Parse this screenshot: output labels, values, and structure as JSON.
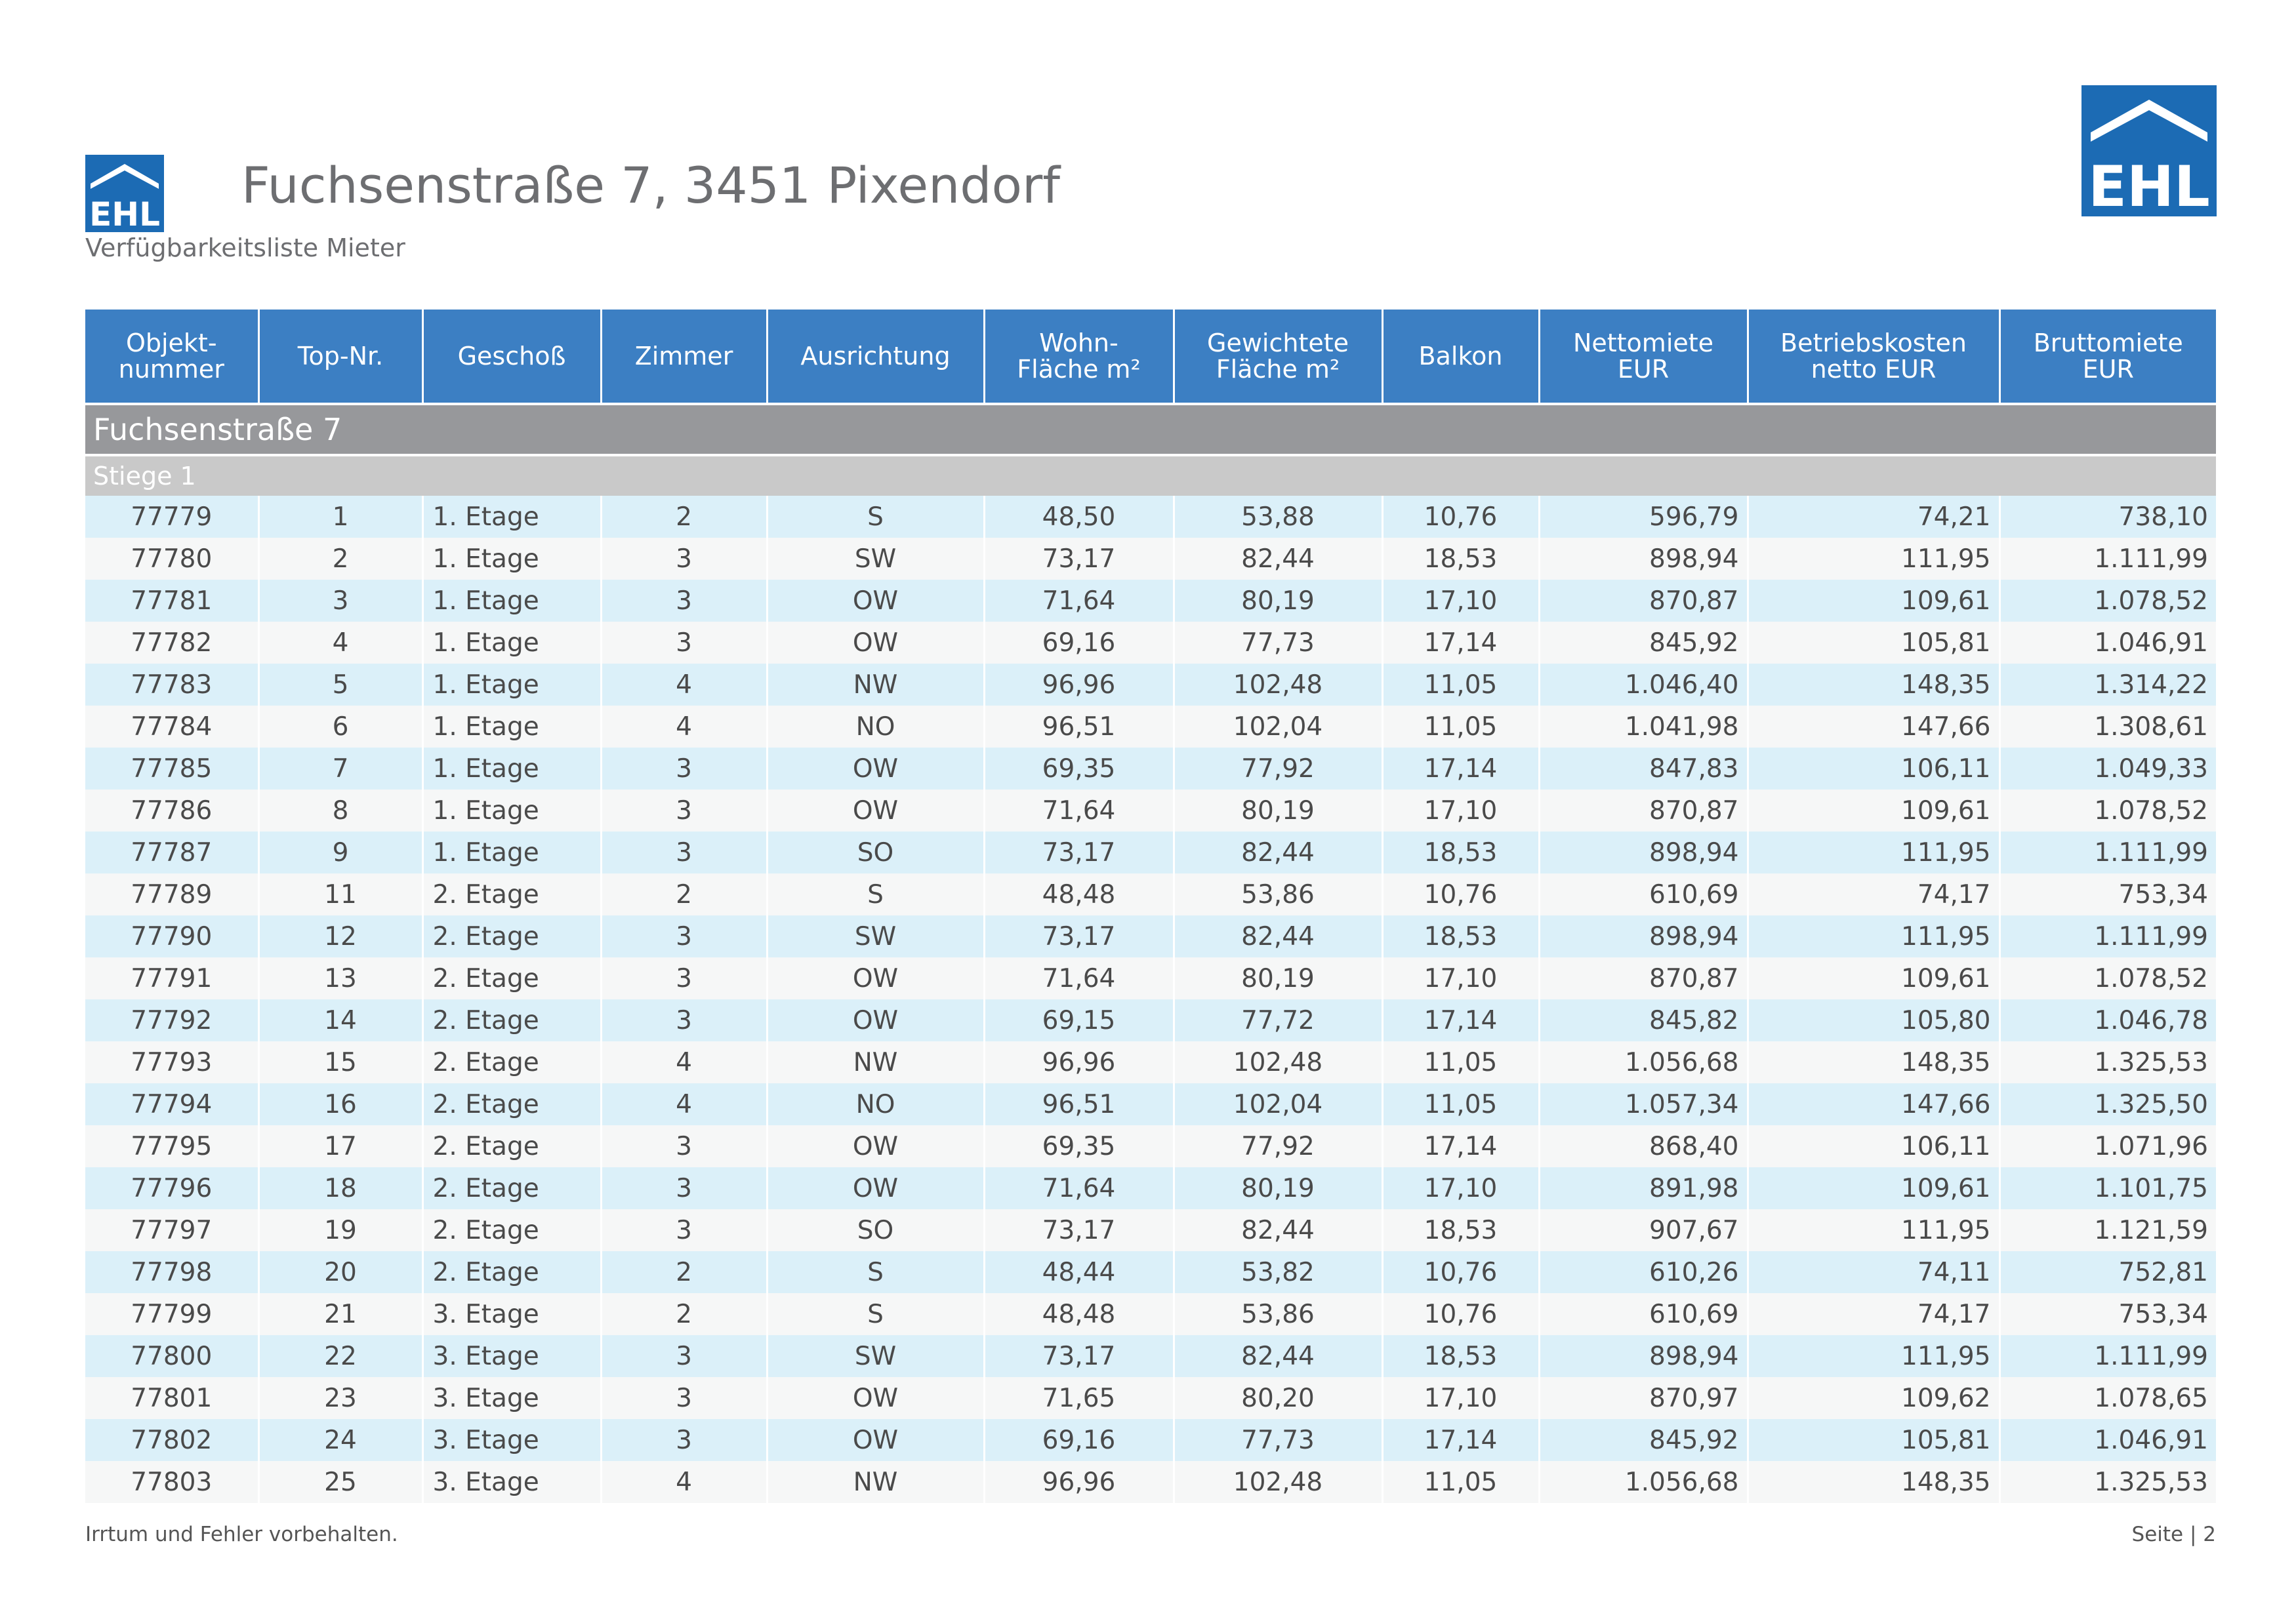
{
  "header": {
    "title": "Fuchsenstraße 7, 3451 Pixendorf",
    "subtitle": "Verfügbarkeitsliste Mieter",
    "logo_text": "EHL",
    "brand_color": "#1c6bb4"
  },
  "table": {
    "columns": [
      "Objekt-\nnummer",
      "Top-Nr.",
      "Geschoß",
      "Zimmer",
      "Ausrichtung",
      "Wohn-\nFläche m²",
      "Gewichtete\nFläche m²",
      "Balkon",
      "Nettomiete\nEUR",
      "Betriebskosten\nnetto EUR",
      "Bruttomiete\nEUR"
    ],
    "building": "Fuchsenstraße 7",
    "stair": "Stiege  1",
    "rows": [
      [
        "77779",
        "1",
        "1. Etage",
        "2",
        "S",
        "48,50",
        "53,88",
        "10,76",
        "596,79",
        "74,21",
        "738,10"
      ],
      [
        "77780",
        "2",
        "1. Etage",
        "3",
        "SW",
        "73,17",
        "82,44",
        "18,53",
        "898,94",
        "111,95",
        "1.111,99"
      ],
      [
        "77781",
        "3",
        "1. Etage",
        "3",
        "OW",
        "71,64",
        "80,19",
        "17,10",
        "870,87",
        "109,61",
        "1.078,52"
      ],
      [
        "77782",
        "4",
        "1. Etage",
        "3",
        "OW",
        "69,16",
        "77,73",
        "17,14",
        "845,92",
        "105,81",
        "1.046,91"
      ],
      [
        "77783",
        "5",
        "1. Etage",
        "4",
        "NW",
        "96,96",
        "102,48",
        "11,05",
        "1.046,40",
        "148,35",
        "1.314,22"
      ],
      [
        "77784",
        "6",
        "1. Etage",
        "4",
        "NO",
        "96,51",
        "102,04",
        "11,05",
        "1.041,98",
        "147,66",
        "1.308,61"
      ],
      [
        "77785",
        "7",
        "1. Etage",
        "3",
        "OW",
        "69,35",
        "77,92",
        "17,14",
        "847,83",
        "106,11",
        "1.049,33"
      ],
      [
        "77786",
        "8",
        "1. Etage",
        "3",
        "OW",
        "71,64",
        "80,19",
        "17,10",
        "870,87",
        "109,61",
        "1.078,52"
      ],
      [
        "77787",
        "9",
        "1. Etage",
        "3",
        "SO",
        "73,17",
        "82,44",
        "18,53",
        "898,94",
        "111,95",
        "1.111,99"
      ],
      [
        "77789",
        "11",
        "2. Etage",
        "2",
        "S",
        "48,48",
        "53,86",
        "10,76",
        "610,69",
        "74,17",
        "753,34"
      ],
      [
        "77790",
        "12",
        "2. Etage",
        "3",
        "SW",
        "73,17",
        "82,44",
        "18,53",
        "898,94",
        "111,95",
        "1.111,99"
      ],
      [
        "77791",
        "13",
        "2. Etage",
        "3",
        "OW",
        "71,64",
        "80,19",
        "17,10",
        "870,87",
        "109,61",
        "1.078,52"
      ],
      [
        "77792",
        "14",
        "2. Etage",
        "3",
        "OW",
        "69,15",
        "77,72",
        "17,14",
        "845,82",
        "105,80",
        "1.046,78"
      ],
      [
        "77793",
        "15",
        "2. Etage",
        "4",
        "NW",
        "96,96",
        "102,48",
        "11,05",
        "1.056,68",
        "148,35",
        "1.325,53"
      ],
      [
        "77794",
        "16",
        "2. Etage",
        "4",
        "NO",
        "96,51",
        "102,04",
        "11,05",
        "1.057,34",
        "147,66",
        "1.325,50"
      ],
      [
        "77795",
        "17",
        "2. Etage",
        "3",
        "OW",
        "69,35",
        "77,92",
        "17,14",
        "868,40",
        "106,11",
        "1.071,96"
      ],
      [
        "77796",
        "18",
        "2. Etage",
        "3",
        "OW",
        "71,64",
        "80,19",
        "17,10",
        "891,98",
        "109,61",
        "1.101,75"
      ],
      [
        "77797",
        "19",
        "2. Etage",
        "3",
        "SO",
        "73,17",
        "82,44",
        "18,53",
        "907,67",
        "111,95",
        "1.121,59"
      ],
      [
        "77798",
        "20",
        "2. Etage",
        "2",
        "S",
        "48,44",
        "53,82",
        "10,76",
        "610,26",
        "74,11",
        "752,81"
      ],
      [
        "77799",
        "21",
        "3. Etage",
        "2",
        "S",
        "48,48",
        "53,86",
        "10,76",
        "610,69",
        "74,17",
        "753,34"
      ],
      [
        "77800",
        "22",
        "3. Etage",
        "3",
        "SW",
        "73,17",
        "82,44",
        "18,53",
        "898,94",
        "111,95",
        "1.111,99"
      ],
      [
        "77801",
        "23",
        "3. Etage",
        "3",
        "OW",
        "71,65",
        "80,20",
        "17,10",
        "870,97",
        "109,62",
        "1.078,65"
      ],
      [
        "77802",
        "24",
        "3. Etage",
        "3",
        "OW",
        "69,16",
        "77,73",
        "17,14",
        "845,92",
        "105,81",
        "1.046,91"
      ],
      [
        "77803",
        "25",
        "3. Etage",
        "4",
        "NW",
        "96,96",
        "102,48",
        "11,05",
        "1.056,68",
        "148,35",
        "1.325,53"
      ]
    ]
  },
  "footer": {
    "disclaimer": "Irrtum und Fehler vorbehalten.",
    "page": "Seite | 2"
  }
}
